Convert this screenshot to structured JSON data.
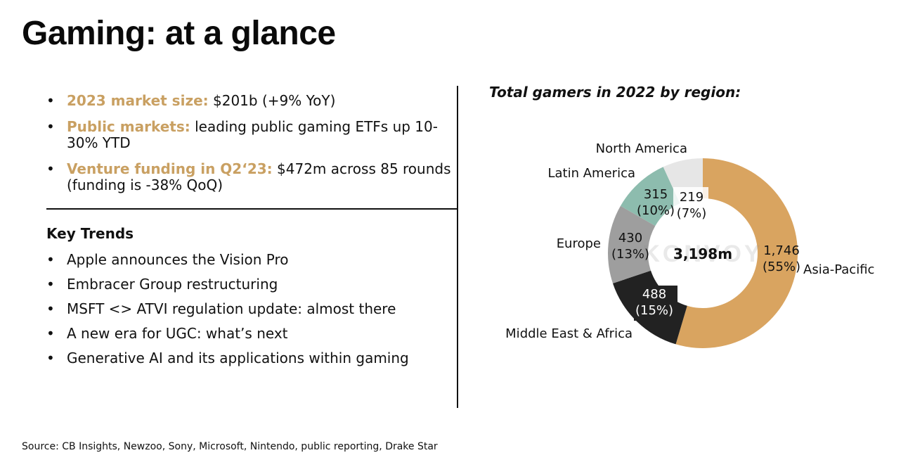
{
  "header": {
    "title": "Gaming: at a glance"
  },
  "highlights": [
    {
      "label": "2023 market size:",
      "text": " $201b (+9% YoY)"
    },
    {
      "label": "Public markets:",
      "text": " leading public gaming ETFs up 10-30% YTD"
    },
    {
      "label": "Venture funding in Q2‘23:",
      "text": " $472m across 85 rounds (funding is -38% QoQ)"
    }
  ],
  "key_trends": {
    "heading": "Key Trends",
    "items": [
      "Apple announces the Vision Pro",
      "Embracer Group restructuring",
      "MSFT <> ATVI regulation update: almost there",
      "A new era for UGC: what’s next",
      "Generative AI and its applications within gaming"
    ]
  },
  "chart_data": {
    "type": "pie",
    "title": "Total gamers in 2022 by region:",
    "center_label": "3,198m",
    "watermark": "KONVOY",
    "unit": "m",
    "slices": [
      {
        "name": "Asia-Pacific",
        "value_label": "1,746",
        "pct_label": "(55%)",
        "value": 1746,
        "color": "#d9a460"
      },
      {
        "name": "Middle East & Africa",
        "value_label": "488",
        "pct_label": "(15%)",
        "value": 488,
        "color": "#222222"
      },
      {
        "name": "Europe",
        "value_label": "430",
        "pct_label": "(13%)",
        "value": 430,
        "color": "#9e9e9e"
      },
      {
        "name": "Latin America",
        "value_label": "315",
        "pct_label": "(10%)",
        "value": 315,
        "color": "#8dbcae"
      },
      {
        "name": "North America",
        "value_label": "219",
        "pct_label": "(7%)",
        "value": 219,
        "color": "#e6e6e6"
      }
    ]
  },
  "footer": {
    "source": "Source: CB Insights, Newzoo, Sony, Microsoft, Nintendo, public reporting, Drake Star"
  }
}
